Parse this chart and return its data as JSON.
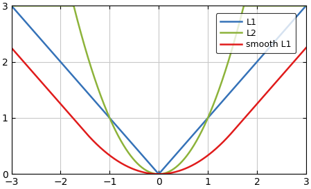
{
  "title": "",
  "xlim": [
    -3,
    3
  ],
  "ylim": [
    0,
    3
  ],
  "xticks": [
    -3,
    -2,
    -1,
    0,
    1,
    2,
    3
  ],
  "yticks": [
    0,
    1,
    2,
    3
  ],
  "l1_color": "#3572B8",
  "l2_color": "#8DB33A",
  "smooth_l1_color": "#E01B1B",
  "l1_label": "L1",
  "l2_label": "L2",
  "smooth_l1_label": "smooth L1",
  "line_width": 1.8,
  "grid": true,
  "grid_color": "#c8c8c8",
  "background_color": "#ffffff",
  "smooth_l1_delta": 1.5
}
